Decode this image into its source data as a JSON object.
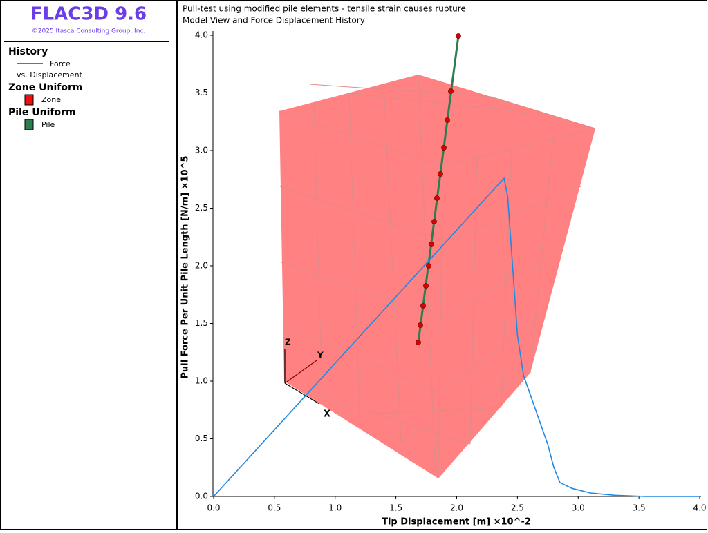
{
  "app": {
    "title": "FLAC3D 9.6",
    "copyright": "©2025 Itasca Consulting Group, Inc."
  },
  "legend": {
    "history": {
      "heading": "History",
      "item": "Force",
      "subitem": "vs. Displacement"
    },
    "zone": {
      "heading": "Zone Uniform",
      "item": "Zone",
      "color": "#ee1111"
    },
    "pile": {
      "heading": "Pile Uniform",
      "item": "Pile",
      "color": "#2e7d4f"
    }
  },
  "model_view": {
    "axes": [
      "X",
      "Y",
      "Z"
    ]
  },
  "chart_data": {
    "type": "line",
    "title": "Pull-test using modified pile elements - tensile strain causes rupture",
    "subtitle": "Model View and Force Displacement History",
    "x_label": "Tip Displacement [m]  ×10^-2",
    "y_label": "Pull Force Per Unit Pile Length [N/m]  ×10^5",
    "xlim": [
      0,
      4
    ],
    "ylim": [
      0,
      4
    ],
    "xticks": [
      {
        "value": 0,
        "label": "0.0"
      },
      0.5,
      {
        "value": 1,
        "label": "1.0"
      },
      1.5,
      {
        "value": 2,
        "label": "2.0"
      },
      2.5,
      {
        "value": 3,
        "label": "3.0"
      },
      3.5,
      {
        "value": 4,
        "label": "4.0"
      }
    ],
    "yticks": [
      {
        "value": 0,
        "label": "0.0"
      },
      0.5,
      {
        "value": 1,
        "label": "1.0"
      },
      1.5,
      {
        "value": 2,
        "label": "2.0"
      },
      2.5,
      {
        "value": 3,
        "label": "3.0"
      },
      3.5,
      {
        "value": 4,
        "label": "4.0"
      }
    ],
    "series": [
      {
        "name": "Force",
        "color": "#1e88e5",
        "x": [
          0,
          2.39,
          2.42,
          2.46,
          2.5,
          2.55,
          2.6,
          2.65,
          2.7,
          2.75,
          2.8,
          2.85,
          2.95,
          3.1,
          3.3,
          3.55,
          4.0
        ],
        "values": [
          0,
          2.76,
          2.6,
          2.0,
          1.4,
          1.05,
          0.9,
          0.75,
          0.6,
          0.45,
          0.25,
          0.12,
          0.07,
          0.03,
          0.01,
          0,
          0
        ]
      }
    ]
  }
}
